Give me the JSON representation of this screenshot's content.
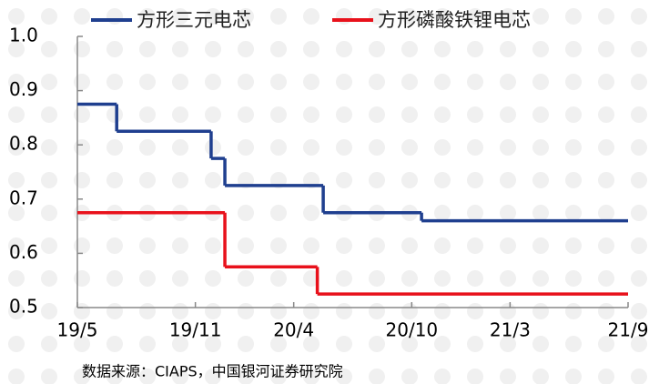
{
  "chart_data": {
    "type": "step",
    "source": "数据来源：CIAPS，中国银河证券研究院",
    "xlim": [
      0,
      28
    ],
    "xticks": [
      {
        "value": 0,
        "label": "19/5"
      },
      {
        "value": 6,
        "label": "19/11"
      },
      {
        "value": 11,
        "label": "20/4"
      },
      {
        "value": 17,
        "label": "20/10"
      },
      {
        "value": 22,
        "label": "21/3"
      },
      {
        "value": 28,
        "label": "21/9"
      }
    ],
    "ylim": [
      0.5,
      1
    ],
    "yticks": [
      {
        "value": 1,
        "label": "1.0"
      },
      0.9,
      0.8,
      0.7,
      0.6,
      0.5
    ],
    "series": [
      {
        "name": "方形三元电芯",
        "color": "#1f3f8f",
        "x": [
          0,
          2,
          6.8,
          7.5,
          12.5,
          17.5
        ],
        "values": [
          0.875,
          0.825,
          0.775,
          0.725,
          0.675,
          0.66
        ]
      },
      {
        "name": "方形磷酸铁锂电芯",
        "color": "#e8111b",
        "x": [
          0,
          7.5,
          12.2
        ],
        "values": [
          0.675,
          0.575,
          0.525
        ]
      }
    ]
  }
}
